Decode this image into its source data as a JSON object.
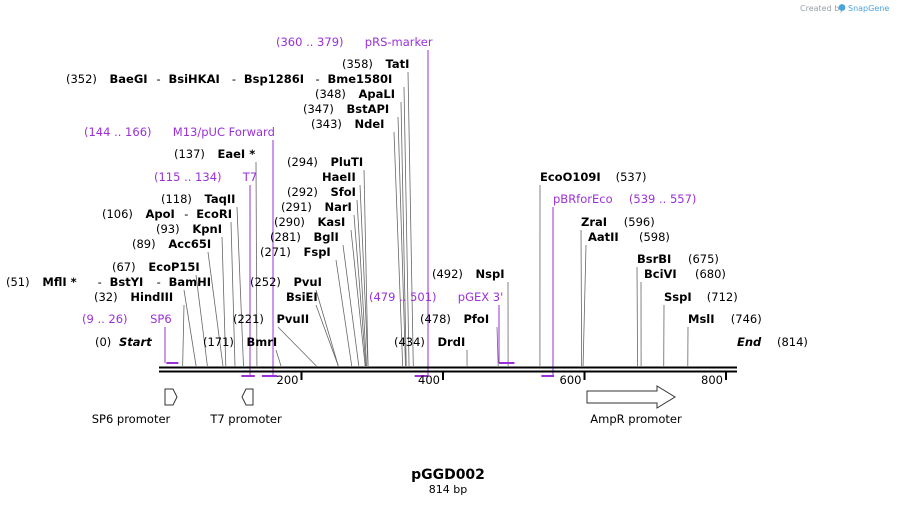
{
  "header": {
    "credit_text": "Created by",
    "brand": "SnapGene"
  },
  "map": {
    "name": "pGGD002",
    "length_label": "814 bp",
    "length": 814,
    "colors": {
      "sequence_line": "#000000",
      "feature": "#9b30d9",
      "leader": "#555555"
    },
    "ruler_ticks": [
      {
        "pos": 200,
        "label": "200"
      },
      {
        "pos": 400,
        "label": "400"
      },
      {
        "pos": 600,
        "label": "600"
      },
      {
        "pos": 800,
        "label": "800"
      }
    ],
    "ends": [
      {
        "pos": 0,
        "num": "(0)",
        "name": "Start"
      },
      {
        "pos": 814,
        "num": "(814)",
        "name": "End"
      }
    ],
    "sites": [
      {
        "id": "mfli",
        "num": "(51)",
        "names": [
          "MflI *",
          "BstYI",
          "BamHI"
        ],
        "cut": 51
      },
      {
        "id": "hindiii",
        "num": "(32)",
        "names": [
          "HindIII"
        ],
        "cut": 32
      },
      {
        "id": "ecop15i",
        "num": "(67)",
        "names": [
          "EcoP15I"
        ],
        "cut": 67
      },
      {
        "id": "acc65i",
        "num": "(89)",
        "names": [
          "Acc65I"
        ],
        "cut": 89
      },
      {
        "id": "kpni",
        "num": "(93)",
        "names": [
          "KpnI"
        ],
        "cut": 93
      },
      {
        "id": "apoi",
        "num": "(106)",
        "names": [
          "ApoI",
          "EcoRI"
        ],
        "cut": 106
      },
      {
        "id": "taqii",
        "num": "(118)",
        "names": [
          "TaqII"
        ],
        "cut": 118
      },
      {
        "id": "eaei",
        "num": "(137)",
        "names": [
          "EaeI *"
        ],
        "cut": 137
      },
      {
        "id": "bmri",
        "num": "(171)",
        "names": [
          "BmrI"
        ],
        "cut": 171
      },
      {
        "id": "pvuii",
        "num": "(221)",
        "names": [
          "PvuII"
        ],
        "cut": 221
      },
      {
        "id": "pvui",
        "num": "(252)",
        "names": [
          "PvuI"
        ],
        "cut": 252
      },
      {
        "id": "bsiei",
        "num": "",
        "names": [
          "BsiEI"
        ],
        "cut": 252
      },
      {
        "id": "fspi",
        "num": "(271)",
        "names": [
          "FspI"
        ],
        "cut": 271
      },
      {
        "id": "bgli",
        "num": "(281)",
        "names": [
          "BglI"
        ],
        "cut": 281
      },
      {
        "id": "kasi",
        "num": "(290)",
        "names": [
          "KasI"
        ],
        "cut": 290
      },
      {
        "id": "nari",
        "num": "(291)",
        "names": [
          "NarI"
        ],
        "cut": 291
      },
      {
        "id": "sfoi",
        "num": "(292)",
        "names": [
          "SfoI"
        ],
        "cut": 292
      },
      {
        "id": "haeii",
        "num": "",
        "names": [
          "HaeII"
        ],
        "cut": 294
      },
      {
        "id": "pluti",
        "num": "(294)",
        "names": [
          "PluTI"
        ],
        "cut": 294
      },
      {
        "id": "ndei",
        "num": "(343)",
        "names": [
          "NdeI"
        ],
        "cut": 343
      },
      {
        "id": "bstapi",
        "num": "(347)",
        "names": [
          "BstAPI"
        ],
        "cut": 347
      },
      {
        "id": "apali",
        "num": "(348)",
        "names": [
          "ApaLI"
        ],
        "cut": 348
      },
      {
        "id": "baegi",
        "num": "(352)",
        "names": [
          "BaeGI",
          "BsiHKAI",
          "Bsp1286I",
          "Bme1580I"
        ],
        "cut": 352
      },
      {
        "id": "tati",
        "num": "(358)",
        "names": [
          "TatI"
        ],
        "cut": 358
      },
      {
        "id": "drdi",
        "num": "(434)",
        "names": [
          "DrdI"
        ],
        "cut": 434
      },
      {
        "id": "pfoi",
        "num": "(478)",
        "names": [
          "PfoI"
        ],
        "cut": 478
      },
      {
        "id": "nspi",
        "num": "(492)",
        "names": [
          "NspI"
        ],
        "cut": 492
      },
      {
        "id": "ecoo109i",
        "num": "(537)",
        "names": [
          "EcoO109I"
        ],
        "cut": 537
      },
      {
        "id": "zrai",
        "num": "(596)",
        "names": [
          "ZraI"
        ],
        "cut": 596
      },
      {
        "id": "aatii",
        "num": "(598)",
        "names": [
          "AatII"
        ],
        "cut": 598
      },
      {
        "id": "bsrbi",
        "num": "(675)",
        "names": [
          "BsrBI"
        ],
        "cut": 675
      },
      {
        "id": "bcivi",
        "num": "(680)",
        "names": [
          "BciVI"
        ],
        "cut": 680
      },
      {
        "id": "sspi",
        "num": "(712)",
        "names": [
          "SspI"
        ],
        "cut": 712
      },
      {
        "id": "msli",
        "num": "(746)",
        "names": [
          "MslI"
        ],
        "cut": 746
      }
    ],
    "primers": [
      {
        "id": "sp6",
        "range": "(9 .. 26)",
        "name": "SP6",
        "start": 9,
        "end": 26
      },
      {
        "id": "t7",
        "range": "(115 .. 134)",
        "name": "T7",
        "start": 115,
        "end": 134
      },
      {
        "id": "m13",
        "range": "(144 .. 166)",
        "name": "M13/pUC Forward",
        "start": 144,
        "end": 166
      },
      {
        "id": "prs",
        "range": "(360 .. 379)",
        "name": "pRS-marker",
        "start": 360,
        "end": 379
      },
      {
        "id": "pgex",
        "range": "(479 .. 501)",
        "name": "pGEX 3'",
        "start": 479,
        "end": 501
      },
      {
        "id": "pbr",
        "range": "(539 .. 557)",
        "name": "pBRforEco",
        "start": 539,
        "end": 557
      }
    ],
    "features": [
      {
        "id": "sp6-promoter",
        "label": "SP6 promoter",
        "direction": "forward"
      },
      {
        "id": "t7-promoter",
        "label": "T7 promoter",
        "direction": "reverse"
      },
      {
        "id": "ampr-promoter",
        "label": "AmpR promoter",
        "direction": "forward"
      }
    ]
  }
}
